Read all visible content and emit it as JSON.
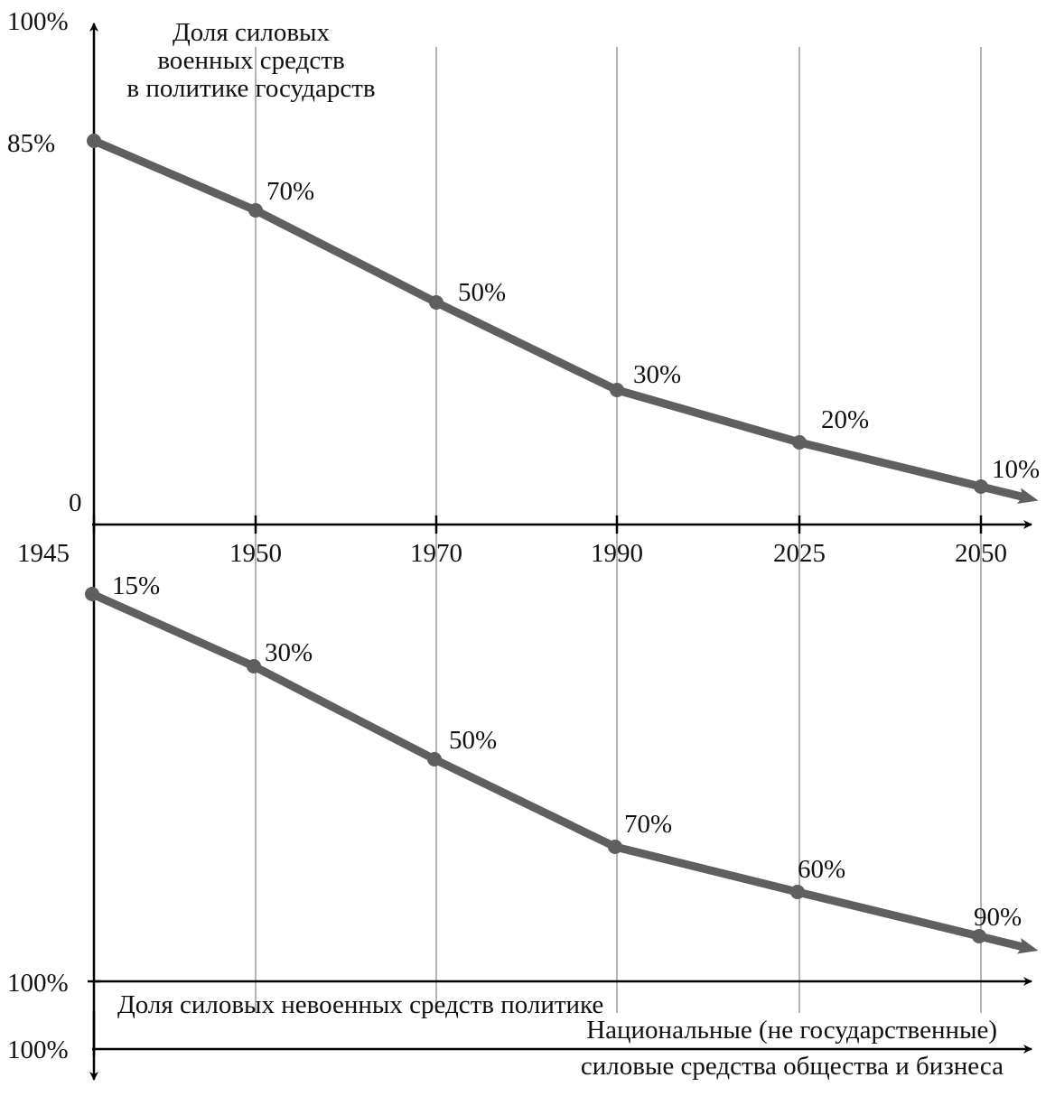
{
  "chart_data": {
    "type": "line",
    "categories": [
      "1945",
      "1950",
      "1970",
      "1990",
      "2025",
      "2050"
    ],
    "series": [
      {
        "name": "Доля силовых военных средств в политике государств",
        "values": [
          85,
          70,
          50,
          30,
          20,
          10
        ],
        "labels": [
          "85%",
          "70%",
          "50%",
          "30%",
          "20%",
          "10%"
        ]
      },
      {
        "name": "Доля силовых невоенных средств политике",
        "values": [
          15,
          30,
          50,
          70,
          60,
          90
        ],
        "labels": [
          "15%",
          "30%",
          "50%",
          "70%",
          "60%",
          "90%"
        ]
      }
    ],
    "title_lines": [
      "Доля силовых",
      "военных средств",
      "в политике государств"
    ],
    "y_top_label": "100%",
    "y_zero_label": "0",
    "y_bottom_label": "100%",
    "y_extra_label": "100%",
    "lower_axis_label": "Доля силовых невоенных средств политике",
    "third_axis_label_lines": [
      "Национальные (не государственные)",
      "силовые средства общества и бизнеса"
    ],
    "ylim": [
      0,
      100
    ],
    "grid": "vertical",
    "line_color": "#5f5f5f",
    "axis_color": "#000000",
    "grid_color": "#9a9a9a"
  }
}
